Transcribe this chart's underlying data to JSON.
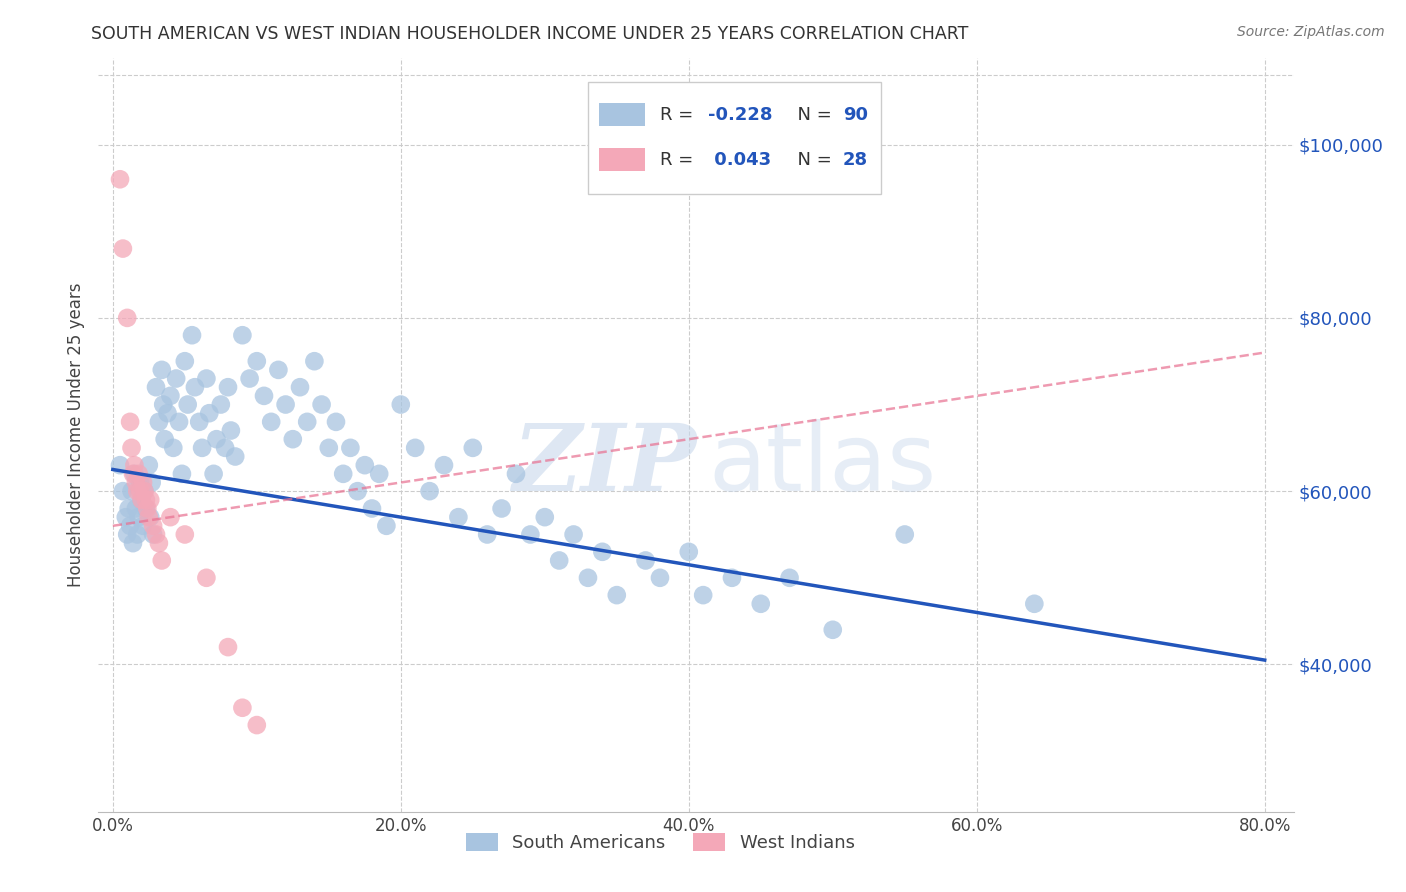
{
  "title": "SOUTH AMERICAN VS WEST INDIAN HOUSEHOLDER INCOME UNDER 25 YEARS CORRELATION CHART",
  "source": "Source: ZipAtlas.com",
  "ylabel": "Householder Income Under 25 years",
  "xlabel_ticks": [
    "0.0%",
    "20.0%",
    "40.0%",
    "60.0%",
    "80.0%"
  ],
  "xlabel_tick_vals": [
    0.0,
    0.2,
    0.4,
    0.6,
    0.8
  ],
  "ylabel_ticks": [
    "$40,000",
    "$60,000",
    "$80,000",
    "$100,000"
  ],
  "ylabel_tick_vals": [
    40000,
    60000,
    80000,
    100000
  ],
  "xlim": [
    -0.01,
    0.82
  ],
  "ylim": [
    23000,
    110000
  ],
  "watermark_zip": "ZIP",
  "watermark_atlas": "atlas",
  "legend_label1": "South Americans",
  "legend_label2": "West Indians",
  "blue_color": "#A8C4E0",
  "pink_color": "#F4A8B8",
  "blue_line_color": "#2255BB",
  "pink_line_color": "#E87090",
  "title_color": "#333333",
  "grid_color": "#CCCCCC",
  "blue_trend_x": [
    0.0,
    0.8
  ],
  "blue_trend_y": [
    62500,
    40500
  ],
  "pink_trend_x": [
    0.0,
    0.8
  ],
  "pink_trend_y": [
    56000,
    76000
  ],
  "blue_scatter": [
    [
      0.005,
      63000
    ],
    [
      0.007,
      60000
    ],
    [
      0.009,
      57000
    ],
    [
      0.01,
      55000
    ],
    [
      0.011,
      58000
    ],
    [
      0.012,
      56000
    ],
    [
      0.013,
      60000
    ],
    [
      0.014,
      54000
    ],
    [
      0.015,
      62000
    ],
    [
      0.016,
      58000
    ],
    [
      0.017,
      55000
    ],
    [
      0.018,
      57000
    ],
    [
      0.019,
      61000
    ],
    [
      0.02,
      59000
    ],
    [
      0.021,
      56000
    ],
    [
      0.022,
      60000
    ],
    [
      0.023,
      58000
    ],
    [
      0.025,
      63000
    ],
    [
      0.026,
      57000
    ],
    [
      0.027,
      61000
    ],
    [
      0.028,
      55000
    ],
    [
      0.03,
      72000
    ],
    [
      0.032,
      68000
    ],
    [
      0.034,
      74000
    ],
    [
      0.035,
      70000
    ],
    [
      0.036,
      66000
    ],
    [
      0.038,
      69000
    ],
    [
      0.04,
      71000
    ],
    [
      0.042,
      65000
    ],
    [
      0.044,
      73000
    ],
    [
      0.046,
      68000
    ],
    [
      0.048,
      62000
    ],
    [
      0.05,
      75000
    ],
    [
      0.052,
      70000
    ],
    [
      0.055,
      78000
    ],
    [
      0.057,
      72000
    ],
    [
      0.06,
      68000
    ],
    [
      0.062,
      65000
    ],
    [
      0.065,
      73000
    ],
    [
      0.067,
      69000
    ],
    [
      0.07,
      62000
    ],
    [
      0.072,
      66000
    ],
    [
      0.075,
      70000
    ],
    [
      0.078,
      65000
    ],
    [
      0.08,
      72000
    ],
    [
      0.082,
      67000
    ],
    [
      0.085,
      64000
    ],
    [
      0.09,
      78000
    ],
    [
      0.095,
      73000
    ],
    [
      0.1,
      75000
    ],
    [
      0.105,
      71000
    ],
    [
      0.11,
      68000
    ],
    [
      0.115,
      74000
    ],
    [
      0.12,
      70000
    ],
    [
      0.125,
      66000
    ],
    [
      0.13,
      72000
    ],
    [
      0.135,
      68000
    ],
    [
      0.14,
      75000
    ],
    [
      0.145,
      70000
    ],
    [
      0.15,
      65000
    ],
    [
      0.155,
      68000
    ],
    [
      0.16,
      62000
    ],
    [
      0.165,
      65000
    ],
    [
      0.17,
      60000
    ],
    [
      0.175,
      63000
    ],
    [
      0.18,
      58000
    ],
    [
      0.185,
      62000
    ],
    [
      0.19,
      56000
    ],
    [
      0.2,
      70000
    ],
    [
      0.21,
      65000
    ],
    [
      0.22,
      60000
    ],
    [
      0.23,
      63000
    ],
    [
      0.24,
      57000
    ],
    [
      0.25,
      65000
    ],
    [
      0.26,
      55000
    ],
    [
      0.27,
      58000
    ],
    [
      0.28,
      62000
    ],
    [
      0.29,
      55000
    ],
    [
      0.3,
      57000
    ],
    [
      0.31,
      52000
    ],
    [
      0.32,
      55000
    ],
    [
      0.33,
      50000
    ],
    [
      0.34,
      53000
    ],
    [
      0.35,
      48000
    ],
    [
      0.37,
      52000
    ],
    [
      0.38,
      50000
    ],
    [
      0.4,
      53000
    ],
    [
      0.41,
      48000
    ],
    [
      0.43,
      50000
    ],
    [
      0.45,
      47000
    ],
    [
      0.47,
      50000
    ],
    [
      0.5,
      44000
    ],
    [
      0.55,
      55000
    ],
    [
      0.64,
      47000
    ]
  ],
  "pink_scatter": [
    [
      0.005,
      96000
    ],
    [
      0.007,
      88000
    ],
    [
      0.01,
      80000
    ],
    [
      0.012,
      68000
    ],
    [
      0.013,
      65000
    ],
    [
      0.014,
      62000
    ],
    [
      0.015,
      63000
    ],
    [
      0.016,
      61000
    ],
    [
      0.017,
      60000
    ],
    [
      0.018,
      62000
    ],
    [
      0.019,
      60000
    ],
    [
      0.02,
      59000
    ],
    [
      0.021,
      61000
    ],
    [
      0.022,
      60000
    ],
    [
      0.023,
      59000
    ],
    [
      0.024,
      58000
    ],
    [
      0.025,
      57000
    ],
    [
      0.026,
      59000
    ],
    [
      0.028,
      56000
    ],
    [
      0.03,
      55000
    ],
    [
      0.032,
      54000
    ],
    [
      0.034,
      52000
    ],
    [
      0.04,
      57000
    ],
    [
      0.05,
      55000
    ],
    [
      0.065,
      50000
    ],
    [
      0.08,
      42000
    ],
    [
      0.09,
      35000
    ],
    [
      0.1,
      33000
    ]
  ]
}
